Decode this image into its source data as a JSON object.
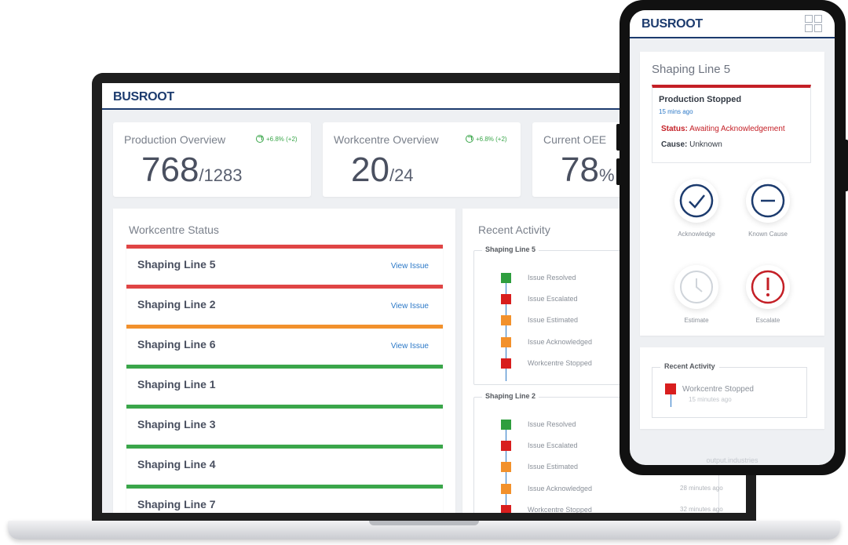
{
  "laptop": {
    "brand": "BUSROOT",
    "kpis": [
      {
        "title": "Production Overview",
        "delta": "+6.8% (+2)",
        "value": "768",
        "sub": "/1283"
      },
      {
        "title": "Workcentre Overview",
        "delta": "+6.8% (+2)",
        "value": "20",
        "sub": "/24"
      },
      {
        "title": "Current OEE",
        "delta": "",
        "value": "78",
        "sub": "%"
      }
    ],
    "workcentre_status": {
      "title": "Workcentre Status",
      "rows": [
        {
          "name": "Shaping Line 5",
          "link": "View Issue",
          "color": "#e04545"
        },
        {
          "name": "Shaping Line 2",
          "link": "View Issue",
          "color": "#e04545"
        },
        {
          "name": "Shaping Line 6",
          "link": "View Issue",
          "color": "#f2912c"
        },
        {
          "name": "Shaping Line 1",
          "link": "",
          "color": "#3aa64a"
        },
        {
          "name": "Shaping Line 3",
          "link": "",
          "color": "#3aa64a"
        },
        {
          "name": "Shaping Line 4",
          "link": "",
          "color": "#3aa64a"
        },
        {
          "name": "Shaping Line 7",
          "link": "",
          "color": "#3aa64a"
        }
      ]
    },
    "recent_activity": {
      "title": "Recent Activity",
      "groups": [
        {
          "title": "Shaping Line 5",
          "items": [
            {
              "text": "Issue Resolved",
              "color": "#2e9e3e",
              "time": ""
            },
            {
              "text": "Issue Escalated",
              "color": "#d81e1e",
              "time": ""
            },
            {
              "text": "Issue Estimated",
              "color": "#f2912c",
              "time": ""
            },
            {
              "text": "Issue Acknowledged",
              "color": "#f2912c",
              "time": ""
            },
            {
              "text": "Workcentre Stopped",
              "color": "#d81e1e",
              "time": ""
            }
          ]
        },
        {
          "title": "Shaping Line 2",
          "items": [
            {
              "text": "Issue Resolved",
              "color": "#2e9e3e",
              "time": ""
            },
            {
              "text": "Issue Escalated",
              "color": "#d81e1e",
              "time": ""
            },
            {
              "text": "Issue Estimated",
              "color": "#f2912c",
              "time": ""
            },
            {
              "text": "Issue Acknowledged",
              "color": "#f2912c",
              "time": "28 minutes ago"
            },
            {
              "text": "Workcentre Stopped",
              "color": "#d81e1e",
              "time": "32 minutes ago"
            }
          ]
        }
      ]
    }
  },
  "phone": {
    "brand": "BUSROOT",
    "card_title": "Shaping Line 5",
    "alert": {
      "title": "Production Stopped",
      "time": "15 mins ago",
      "status_label": "Status:",
      "status_value": "Awaiting Acknowledgement",
      "cause_label": "Cause:",
      "cause_value": "Unknown"
    },
    "actions": [
      {
        "label": "Acknowledge",
        "icon": "check-icon",
        "color": "#1c3b6e"
      },
      {
        "label": "Known Cause",
        "icon": "minus-icon",
        "color": "#1c3b6e"
      },
      {
        "label": "Estimate",
        "icon": "clock-icon",
        "color": "#cfd4da"
      },
      {
        "label": "Escalate",
        "icon": "alert-icon",
        "color": "#c41f26"
      }
    ],
    "recent_activity": {
      "title": "Recent Activity",
      "item_text": "Workcentre Stopped",
      "item_time": "15 minutes ago",
      "item_color": "#d81e1e"
    },
    "footer": "output.industries"
  }
}
